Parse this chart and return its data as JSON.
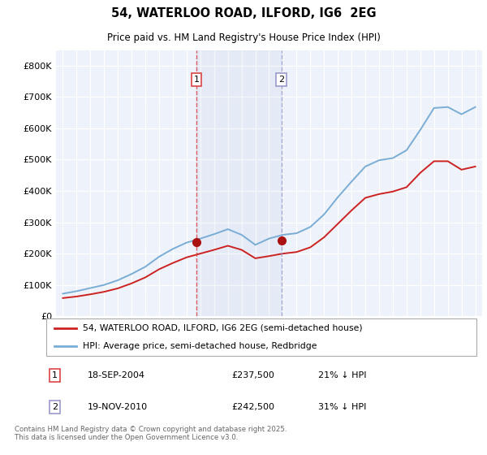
{
  "title": "54, WATERLOO ROAD, ILFORD, IG6  2EG",
  "subtitle": "Price paid vs. HM Land Registry's House Price Index (HPI)",
  "ylim": [
    0,
    850000
  ],
  "yticks": [
    0,
    100000,
    200000,
    300000,
    400000,
    500000,
    600000,
    700000,
    800000
  ],
  "ytick_labels": [
    "£0",
    "£100K",
    "£200K",
    "£300K",
    "£400K",
    "£500K",
    "£600K",
    "£700K",
    "£800K"
  ],
  "background_color": "#ffffff",
  "plot_bg_color": "#eef2fa",
  "grid_color": "#ffffff",
  "hpi_color": "#7aadd6",
  "price_color": "#cc2222",
  "vline1_color": "#dd4444",
  "vline2_color": "#9999cc",
  "legend_line1": "54, WATERLOO ROAD, ILFORD, IG6 2EG (semi-detached house)",
  "legend_line2": "HPI: Average price, semi-detached house, Redbridge",
  "footer": "Contains HM Land Registry data © Crown copyright and database right 2025.\nThis data is licensed under the Open Government Licence v3.0.",
  "hpi_years": [
    1995,
    1996,
    1997,
    1998,
    1999,
    2000,
    2001,
    2002,
    2003,
    2004,
    2005,
    2006,
    2007,
    2008,
    2009,
    2010,
    2011,
    2012,
    2013,
    2014,
    2015,
    2016,
    2017,
    2018,
    2019,
    2020,
    2021,
    2022,
    2023,
    2024,
    2025
  ],
  "hpi_values": [
    72000,
    80000,
    90000,
    100000,
    115000,
    135000,
    158000,
    190000,
    215000,
    235000,
    248000,
    262000,
    278000,
    260000,
    228000,
    248000,
    260000,
    265000,
    285000,
    325000,
    380000,
    430000,
    478000,
    498000,
    505000,
    530000,
    595000,
    665000,
    668000,
    645000,
    668000
  ],
  "price_years": [
    1995,
    1996,
    1997,
    1998,
    1999,
    2000,
    2001,
    2002,
    2003,
    2004,
    2005,
    2006,
    2007,
    2008,
    2009,
    2010,
    2011,
    2012,
    2013,
    2014,
    2015,
    2016,
    2017,
    2018,
    2019,
    2020,
    2021,
    2022,
    2023,
    2024,
    2025
  ],
  "price_values": [
    58000,
    63000,
    70000,
    78000,
    89000,
    105000,
    124000,
    150000,
    170000,
    188000,
    200000,
    212000,
    225000,
    212000,
    185000,
    192000,
    200000,
    205000,
    220000,
    252000,
    295000,
    338000,
    378000,
    390000,
    398000,
    412000,
    458000,
    495000,
    495000,
    468000,
    478000
  ],
  "sale1_year": 2004.72,
  "sale1_price": 237500,
  "sale2_year": 2010.89,
  "sale2_price": 242500,
  "sale1_label": "1",
  "sale2_label": "2",
  "sale1_date": "18-SEP-2004",
  "sale1_amount": "£237,500",
  "sale1_hpi": "21% ↓ HPI",
  "sale2_date": "19-NOV-2010",
  "sale2_amount": "£242,500",
  "sale2_hpi": "31% ↓ HPI"
}
